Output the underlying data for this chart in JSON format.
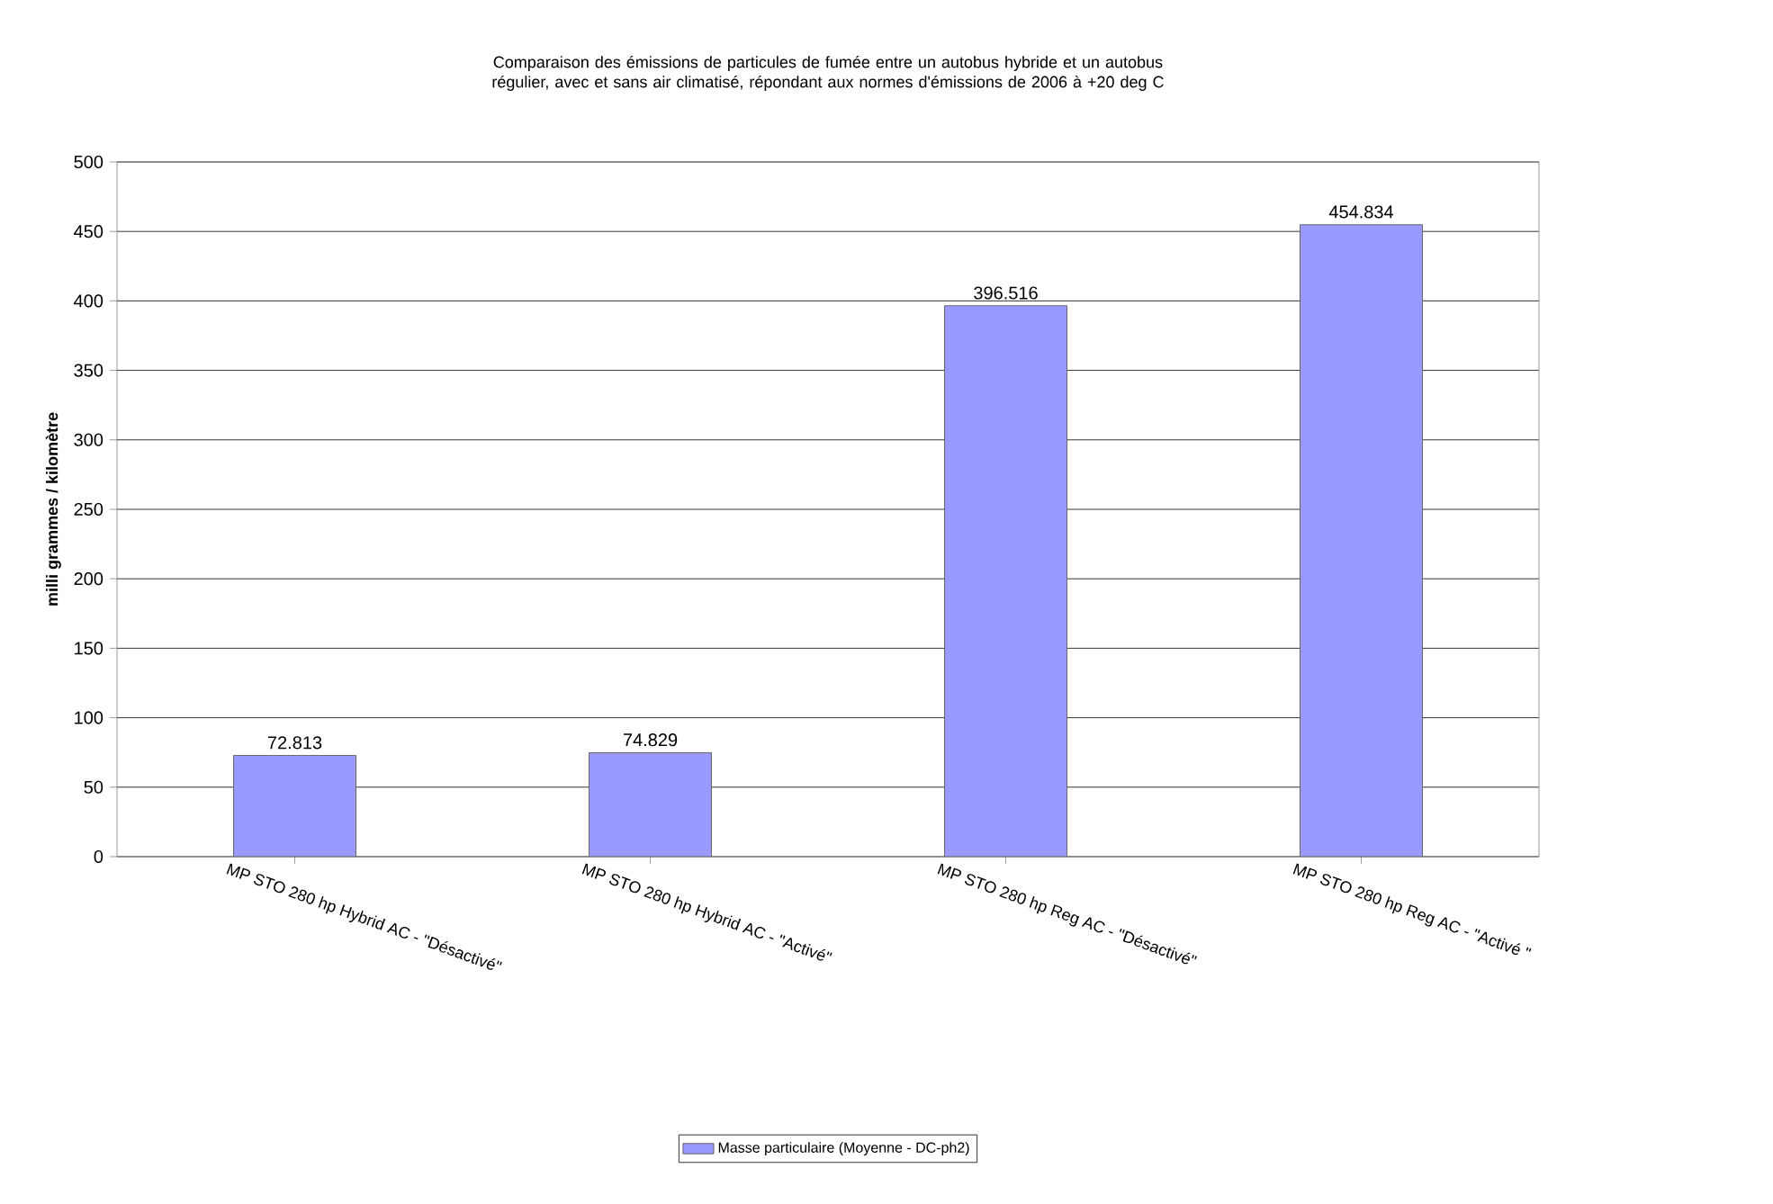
{
  "chart_data": {
    "type": "bar",
    "title": "Comparaison des émissions de particules de fumée entre un autobus hybride et un autobus régulier, avec et sans air climatisé, répondant aux normes d'émissions de 2006 à +20 deg C",
    "ylabel": "milli grammes / kilomètre",
    "categories": [
      "MP STO 280 hp Hybrid AC - \"Désactivé\"",
      "MP STO 280 hp Hybrid AC - \"Activé\"",
      "MP STO 280 hp Reg AC - \"Désactivé\"",
      "MP STO 280 hp Reg AC - \"Activé \""
    ],
    "series": [
      {
        "name": "Masse particulaire (Moyenne - DC-ph2)",
        "color": "#9999ff",
        "values": [
          72.813,
          74.829,
          396.516,
          454.834
        ]
      }
    ],
    "ylim": [
      0,
      500
    ],
    "yticks": [
      0,
      50,
      100,
      150,
      200,
      250,
      300,
      350,
      400,
      450,
      500
    ],
    "grid": "y",
    "legend": "bottom",
    "data_labels": true
  }
}
